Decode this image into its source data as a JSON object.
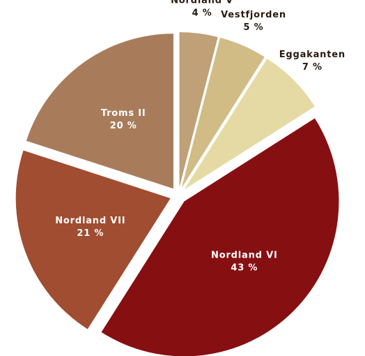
{
  "chart_data": {
    "type": "pie",
    "categories": [
      "Nordland V",
      "Vestfjorden",
      "Eggakanten",
      "Nordland VI",
      "Nordland VII",
      "Troms II"
    ],
    "values": [
      4,
      5,
      7,
      43,
      21,
      20
    ],
    "value_labels": [
      "4 %",
      "5 %",
      "7 %",
      "43 %",
      "21 %",
      "20 %"
    ],
    "colors": [
      "#bfa077",
      "#d1bc86",
      "#e5daa3",
      "#860f12",
      "#a04d31",
      "#a87c5b"
    ]
  }
}
